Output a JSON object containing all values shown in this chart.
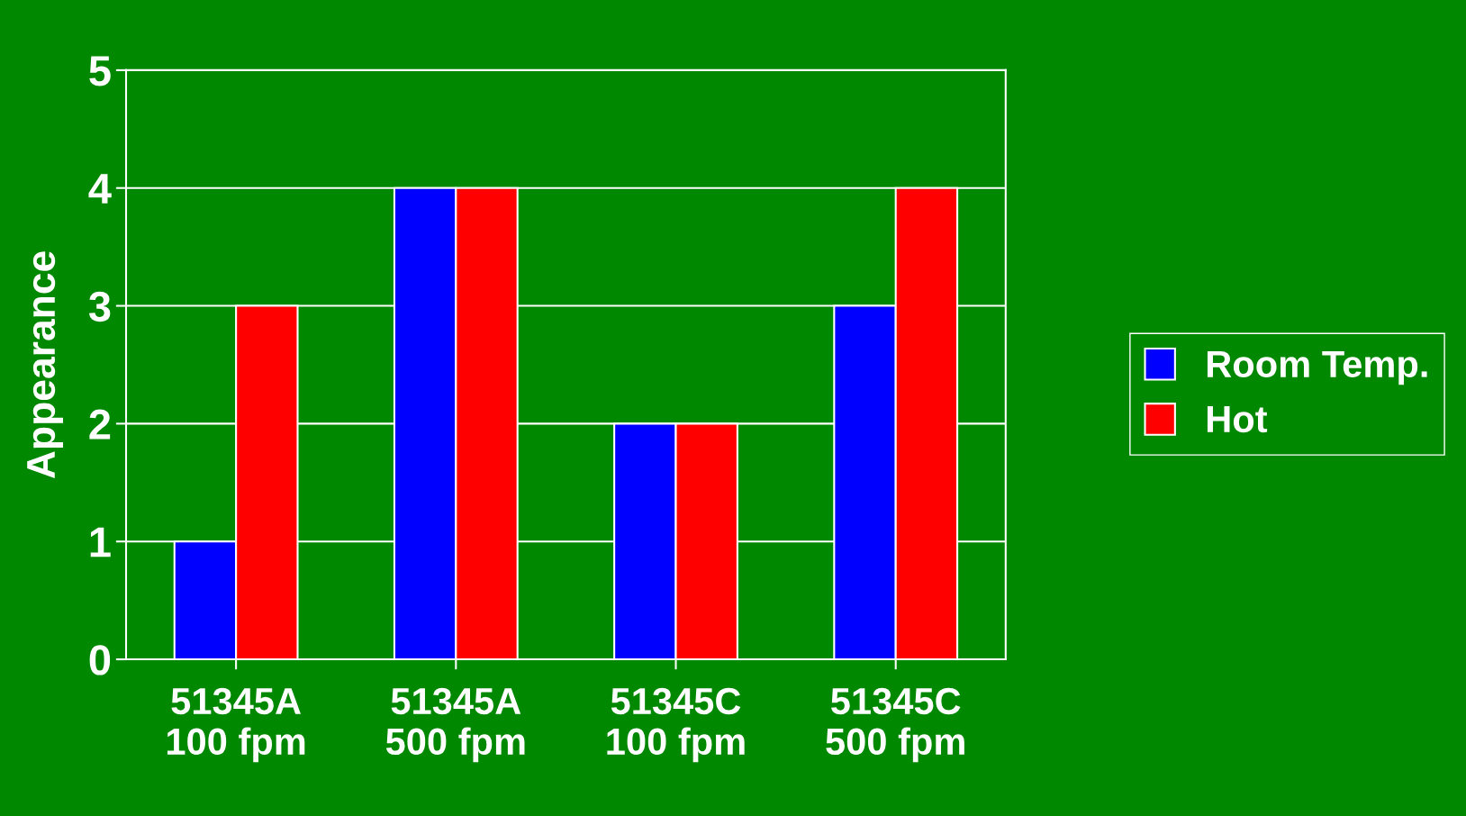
{
  "chart_data": {
    "type": "bar",
    "ylabel": "Appearance",
    "categories": [
      "51345A\n100 fpm",
      "51345A\n500 fpm",
      "51345C\n100 fpm",
      "51345C\n500 fpm"
    ],
    "series": [
      {
        "name": "Room Temp.",
        "color": "#0000ff",
        "values": [
          1,
          4,
          2,
          3
        ]
      },
      {
        "name": "Hot",
        "color": "#ff0000",
        "values": [
          3,
          4,
          2,
          4
        ]
      }
    ],
    "ylim": [
      0,
      5
    ],
    "yticks": [
      0,
      1,
      2,
      3,
      4,
      5
    ],
    "grid": "y",
    "legend": "right"
  }
}
